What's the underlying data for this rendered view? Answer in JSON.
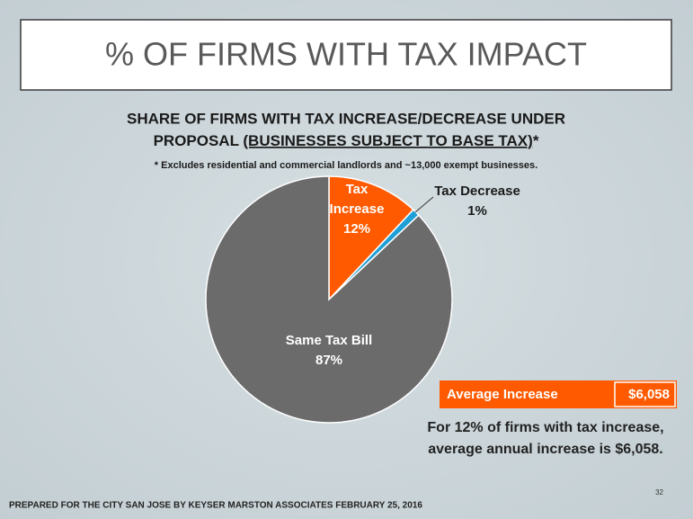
{
  "slide_title": "% OF FIRMS WITH TAX IMPACT",
  "chart_data": {
    "type": "pie",
    "title_line1": "SHARE OF FIRMS WITH TAX INCREASE/DECREASE UNDER",
    "title_line2_start": "PROPOSAL",
    "title_line2_underlined": "(BUSINESSES SUBJECT TO BASE TAX)",
    "title_line2_end": "*",
    "subtitle": "* Excludes residential and commercial landlords and ~13,000 exempt businesses.",
    "categories": [
      "Tax Increase",
      "Tax Decrease",
      "Same Tax Bill"
    ],
    "values": [
      12,
      1,
      87
    ],
    "value_labels": [
      "12%",
      "1%",
      "87%"
    ],
    "colors": [
      "#ff5a00",
      "#1e9fd6",
      "#6b6b6b"
    ]
  },
  "callout": {
    "label": "Average Increase",
    "value": "$6,058"
  },
  "note": [
    "For 12% of firms with tax increase,",
    "average annual increase is $6,058."
  ],
  "footer": "PREPARED FOR THE CITY SAN JOSE BY KEYSER MARSTON ASSOCIATES FEBRUARY 25, 2016",
  "page_number": "32"
}
